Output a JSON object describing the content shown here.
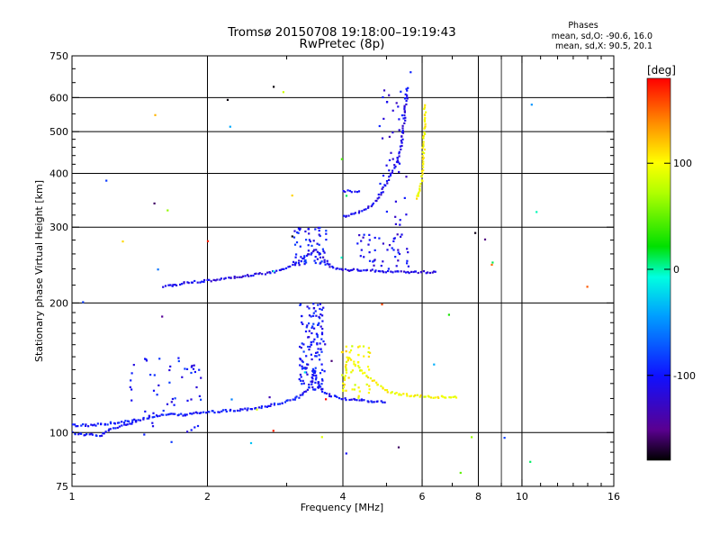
{
  "chart_data": {
    "type": "scatter",
    "title": "Tromsø 20150708 19:18:00–19:19:43",
    "subtitle": "RwPretec (8p)",
    "xlabel": "Frequency [MHz]",
    "ylabel": "Stationary phase Virtual Height [km]",
    "x_scale": "log",
    "y_scale": "log",
    "xlim": [
      1,
      16
    ],
    "ylim": [
      75,
      750
    ],
    "x_ticks": [
      1,
      2,
      4,
      6,
      8,
      10,
      16
    ],
    "x_tick_labels": [
      "1",
      "2",
      "4",
      "6",
      "8",
      "10",
      "16"
    ],
    "x_minor_ticks": [
      3,
      5,
      7,
      9,
      11,
      12,
      13,
      14,
      15
    ],
    "y_ticks": [
      75,
      100,
      200,
      300,
      400,
      500,
      600,
      750
    ],
    "y_tick_labels": [
      "75",
      "100",
      "200",
      "300",
      "400",
      "500",
      "600",
      "750"
    ],
    "grid": true,
    "phases_box": {
      "title": "Phases",
      "line_o": "mean, sd,O: -90.6, 16.0",
      "line_x": "mean, sd,X:  90.5, 20.1"
    },
    "colorbar": {
      "label": "[deg]",
      "range": [
        -180,
        180
      ],
      "ticks": [
        100,
        0,
        -100
      ],
      "tick_labels": [
        "100",
        "0",
        "-100"
      ]
    },
    "traces": [
      {
        "phase": -100,
        "x": [
          1.0,
          1.05,
          1.1,
          1.15,
          1.2,
          1.3,
          1.45,
          1.6,
          1.75,
          1.9,
          2.1,
          2.4,
          2.7,
          3.0,
          3.2,
          3.3,
          3.4,
          3.45,
          3.5,
          3.6,
          3.75,
          4.0,
          4.3,
          4.7,
          5.0
        ],
        "y": [
          100,
          99,
          99,
          98,
          101,
          104,
          108,
          110,
          110,
          111,
          112,
          113,
          115,
          118,
          121,
          124,
          130,
          140,
          133,
          125,
          122,
          120,
          119,
          118,
          118
        ]
      },
      {
        "phase": -100,
        "x": [
          1.0,
          1.1,
          1.2,
          1.3,
          1.4
        ],
        "y": [
          104,
          104,
          105,
          106,
          107
        ]
      },
      {
        "phase": -110,
        "x": [
          1.6,
          1.8,
          2.0,
          2.2,
          2.4,
          2.6,
          2.8,
          3.0,
          3.15,
          3.3,
          3.4,
          3.5,
          3.6,
          3.75,
          4.0,
          4.5,
          5.0,
          5.5,
          6.0,
          6.5
        ],
        "y": [
          218,
          223,
          225,
          228,
          231,
          233,
          236,
          241,
          247,
          256,
          262,
          266,
          254,
          243,
          239,
          238,
          237,
          236,
          236,
          236
        ]
      },
      {
        "phase": -110,
        "x": [
          4.0,
          4.2,
          4.5,
          4.8,
          5.0,
          5.2,
          5.35,
          5.45,
          5.5,
          5.55
        ],
        "y": [
          318,
          322,
          330,
          350,
          380,
          410,
          450,
          500,
          570,
          640
        ]
      },
      {
        "phase": -100,
        "x": [
          4.0,
          4.1,
          4.2,
          4.3,
          4.4
        ],
        "y": [
          365,
          364,
          363,
          362,
          362
        ]
      },
      {
        "phase": 100,
        "x": [
          5.85,
          5.95,
          6.0,
          6.05,
          6.1
        ],
        "y": [
          350,
          370,
          400,
          470,
          580
        ]
      },
      {
        "phase": 100,
        "x": [
          4.0,
          4.1,
          4.25,
          4.4,
          4.6,
          4.8,
          5.0,
          5.3,
          5.7,
          6.1,
          6.6,
          7.2
        ],
        "y": [
          125,
          150,
          145,
          139,
          133,
          129,
          125,
          123,
          122,
          121,
          121,
          121
        ]
      }
    ],
    "clouds": [
      {
        "phase": -100,
        "x_range": [
          3.2,
          3.65
        ],
        "y_range": [
          125,
          200
        ],
        "count": 130
      },
      {
        "phase": -100,
        "x_range": [
          3.1,
          3.7
        ],
        "y_range": [
          245,
          300
        ],
        "count": 60
      },
      {
        "phase": -110,
        "x_range": [
          4.3,
          5.6
        ],
        "y_range": [
          238,
          290
        ],
        "count": 45
      },
      {
        "phase": -100,
        "x_range": [
          1.3,
          1.95
        ],
        "y_range": [
          95,
          150
        ],
        "count": 55
      },
      {
        "phase": -110,
        "x_range": [
          4.8,
          5.6
        ],
        "y_range": [
          300,
          640
        ],
        "count": 40
      },
      {
        "phase": 100,
        "x_range": [
          3.9,
          4.6
        ],
        "y_range": [
          120,
          160
        ],
        "count": 40
      },
      {
        "phase": 60,
        "x_range": [
          1.0,
          15.0
        ],
        "y_range": [
          80,
          700
        ],
        "count": 45
      }
    ]
  }
}
